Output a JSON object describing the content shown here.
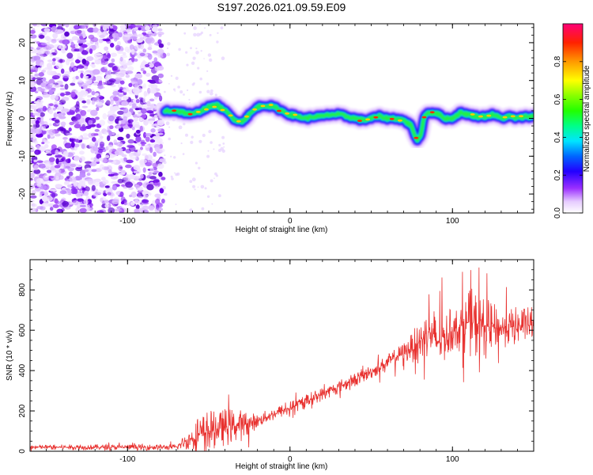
{
  "title": "S197.2026.021.09.59.E09",
  "colors": {
    "snr_line": "#e8302e",
    "speckle": "#a855f7",
    "speckle_dark": "#6a00e6"
  },
  "chart_data": [
    {
      "type": "heatmap",
      "xlabel": "Height of straight line (km)",
      "ylabel": "Frequency (Hz)",
      "xlim": [
        -160,
        150
      ],
      "ylim": [
        -25,
        25
      ],
      "xticks": [
        {
          "value": -100,
          "label": "-100"
        },
        {
          "value": 0,
          "label": "0"
        },
        {
          "value": 100,
          "label": "100"
        }
      ],
      "yticks": [
        {
          "value": -20,
          "label": "-20"
        },
        {
          "value": -10,
          "label": "-10"
        },
        {
          "value": 0,
          "label": "0"
        },
        {
          "value": 10,
          "label": "10"
        },
        {
          "value": 20,
          "label": "20"
        }
      ],
      "noise_region": [
        -160,
        -78
      ],
      "ridge": {
        "x": [
          -77,
          -70,
          -65,
          -60,
          -55,
          -50,
          -45,
          -40,
          -35,
          -30,
          -25,
          -20,
          -15,
          -10,
          -5,
          0,
          5,
          10,
          15,
          20,
          25,
          30,
          35,
          40,
          45,
          50,
          55,
          60,
          65,
          70,
          75,
          78,
          80,
          83,
          85,
          90,
          95,
          100,
          105,
          110,
          115,
          120,
          125,
          130,
          135,
          140,
          145,
          150
        ],
        "y": [
          2,
          2,
          1.5,
          1,
          2,
          3,
          3.5,
          2,
          0,
          -1,
          1,
          3,
          3.5,
          3,
          2,
          1,
          0.5,
          0,
          0.5,
          0.5,
          1,
          1,
          0.5,
          0,
          -0.5,
          0,
          0.5,
          0,
          0,
          -0.5,
          -2,
          -6,
          -5,
          1,
          1.5,
          1.5,
          0,
          0,
          1.5,
          1,
          0.5,
          0.5,
          1,
          0,
          0.5,
          0,
          0.5,
          0.5
        ]
      },
      "colorbar": {
        "label": "Normalized spectral amplitude",
        "range": [
          0,
          1
        ],
        "ticks": [
          {
            "value": 0.0,
            "label": "0.0"
          },
          {
            "value": 0.2,
            "label": "0.2"
          },
          {
            "value": 0.4,
            "label": "0.4"
          },
          {
            "value": 0.6,
            "label": "0.6"
          },
          {
            "value": 0.8,
            "label": "0.8"
          }
        ]
      }
    },
    {
      "type": "line",
      "xlabel": "Height of straight line (km)",
      "ylabel": "SNR (10 * v/v)",
      "xlim": [
        -160,
        150
      ],
      "ylim": [
        0,
        950
      ],
      "xticks": [
        {
          "value": -100,
          "label": "-100"
        },
        {
          "value": 0,
          "label": "0"
        },
        {
          "value": 100,
          "label": "100"
        }
      ],
      "yticks": [
        {
          "value": 0,
          "label": "0"
        },
        {
          "value": 200,
          "label": "200"
        },
        {
          "value": 400,
          "label": "400"
        },
        {
          "value": 600,
          "label": "600"
        },
        {
          "value": 800,
          "label": "800"
        }
      ],
      "trend": {
        "x": [
          -160,
          -70,
          -62,
          -50,
          -40,
          -30,
          -20,
          -10,
          0,
          10,
          20,
          30,
          40,
          50,
          60,
          70,
          80,
          85,
          90,
          100,
          110,
          120,
          130,
          140,
          150
        ],
        "y": [
          20,
          20,
          60,
          100,
          120,
          130,
          150,
          185,
          215,
          250,
          285,
          320,
          355,
          395,
          440,
          490,
          540,
          600,
          540,
          600,
          640,
          620,
          610,
          620,
          630
        ]
      },
      "noise_amplitude": {
        "x": [
          -160,
          -70,
          -62,
          -55,
          -50,
          -45,
          -40,
          -30,
          -20,
          0,
          40,
          60,
          70,
          75,
          80,
          85,
          90,
          95,
          100,
          105,
          110,
          115,
          120,
          130,
          140,
          150
        ],
        "amp": [
          15,
          18,
          60,
          110,
          130,
          90,
          110,
          90,
          40,
          40,
          40,
          45,
          60,
          80,
          130,
          150,
          200,
          150,
          120,
          140,
          180,
          210,
          160,
          110,
          110,
          100
        ]
      }
    }
  ]
}
